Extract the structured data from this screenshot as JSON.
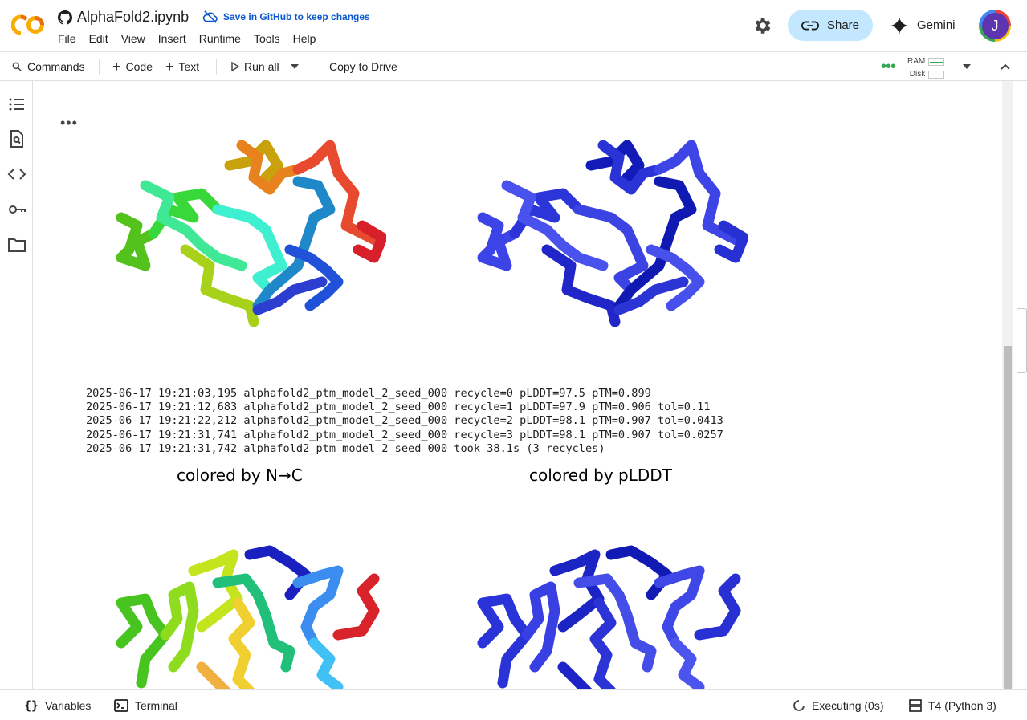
{
  "header": {
    "notebook_name": "AlphaFold2.ipynb",
    "save_github": "Save in GitHub to keep changes",
    "menu": [
      "File",
      "Edit",
      "View",
      "Insert",
      "Runtime",
      "Tools",
      "Help"
    ],
    "share_label": "Share",
    "gemini_label": "Gemini",
    "avatar_initial": "J"
  },
  "toolbar": {
    "commands": "Commands",
    "code": "Code",
    "text": "Text",
    "run_all": "Run all",
    "copy_to_drive": "Copy to Drive",
    "ram": "RAM",
    "disk": "Disk"
  },
  "output": {
    "log_lines": [
      "2025-06-17 19:21:03,195 alphafold2_ptm_model_2_seed_000 recycle=0 pLDDT=97.5 pTM=0.899",
      "2025-06-17 19:21:12,683 alphafold2_ptm_model_2_seed_000 recycle=1 pLDDT=97.9 pTM=0.906 tol=0.11",
      "2025-06-17 19:21:22,212 alphafold2_ptm_model_2_seed_000 recycle=2 pLDDT=98.1 pTM=0.907 tol=0.0413",
      "2025-06-17 19:21:31,741 alphafold2_ptm_model_2_seed_000 recycle=3 pLDDT=98.1 pTM=0.907 tol=0.0257",
      "2025-06-17 19:21:31,742 alphafold2_ptm_model_2_seed_000 took 38.1s (3 recycles)"
    ],
    "title_nc": "colored by N→C",
    "title_plddt": "colored by pLDDT"
  },
  "status": {
    "variables": "Variables",
    "terminal": "Terminal",
    "executing": "Executing (0s)",
    "runtime": "T4 (Python 3)"
  },
  "colors": {
    "accent": "#0b57d0",
    "share_bg": "#c2e7ff",
    "avatar_bg": "#5e35b1"
  }
}
